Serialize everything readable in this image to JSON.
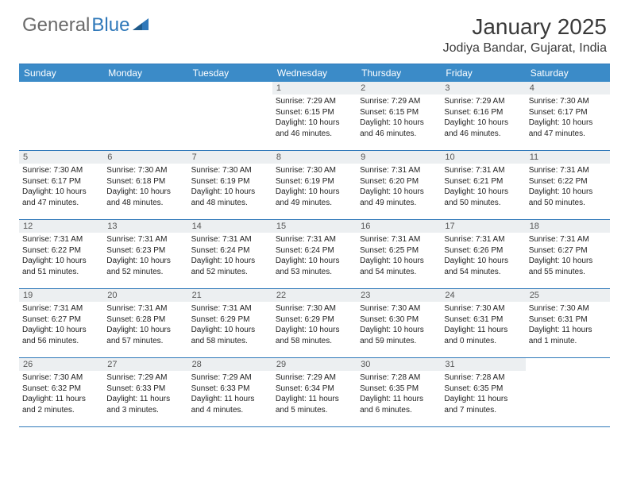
{
  "logo": {
    "text1": "General",
    "text2": "Blue"
  },
  "title": "January 2025",
  "location": "Jodiya Bandar, Gujarat, India",
  "colors": {
    "header_bar": "#3b8bc8",
    "rule": "#2f78b9",
    "daynum_bg": "#eceff1",
    "logo_gray": "#6a6a6a",
    "logo_blue": "#2f78b9"
  },
  "day_names": [
    "Sunday",
    "Monday",
    "Tuesday",
    "Wednesday",
    "Thursday",
    "Friday",
    "Saturday"
  ],
  "weeks": [
    [
      {
        "n": "",
        "sr": "",
        "ss": "",
        "dl": ""
      },
      {
        "n": "",
        "sr": "",
        "ss": "",
        "dl": ""
      },
      {
        "n": "",
        "sr": "",
        "ss": "",
        "dl": ""
      },
      {
        "n": "1",
        "sr": "Sunrise: 7:29 AM",
        "ss": "Sunset: 6:15 PM",
        "dl": "Daylight: 10 hours and 46 minutes."
      },
      {
        "n": "2",
        "sr": "Sunrise: 7:29 AM",
        "ss": "Sunset: 6:15 PM",
        "dl": "Daylight: 10 hours and 46 minutes."
      },
      {
        "n": "3",
        "sr": "Sunrise: 7:29 AM",
        "ss": "Sunset: 6:16 PM",
        "dl": "Daylight: 10 hours and 46 minutes."
      },
      {
        "n": "4",
        "sr": "Sunrise: 7:30 AM",
        "ss": "Sunset: 6:17 PM",
        "dl": "Daylight: 10 hours and 47 minutes."
      }
    ],
    [
      {
        "n": "5",
        "sr": "Sunrise: 7:30 AM",
        "ss": "Sunset: 6:17 PM",
        "dl": "Daylight: 10 hours and 47 minutes."
      },
      {
        "n": "6",
        "sr": "Sunrise: 7:30 AM",
        "ss": "Sunset: 6:18 PM",
        "dl": "Daylight: 10 hours and 48 minutes."
      },
      {
        "n": "7",
        "sr": "Sunrise: 7:30 AM",
        "ss": "Sunset: 6:19 PM",
        "dl": "Daylight: 10 hours and 48 minutes."
      },
      {
        "n": "8",
        "sr": "Sunrise: 7:30 AM",
        "ss": "Sunset: 6:19 PM",
        "dl": "Daylight: 10 hours and 49 minutes."
      },
      {
        "n": "9",
        "sr": "Sunrise: 7:31 AM",
        "ss": "Sunset: 6:20 PM",
        "dl": "Daylight: 10 hours and 49 minutes."
      },
      {
        "n": "10",
        "sr": "Sunrise: 7:31 AM",
        "ss": "Sunset: 6:21 PM",
        "dl": "Daylight: 10 hours and 50 minutes."
      },
      {
        "n": "11",
        "sr": "Sunrise: 7:31 AM",
        "ss": "Sunset: 6:22 PM",
        "dl": "Daylight: 10 hours and 50 minutes."
      }
    ],
    [
      {
        "n": "12",
        "sr": "Sunrise: 7:31 AM",
        "ss": "Sunset: 6:22 PM",
        "dl": "Daylight: 10 hours and 51 minutes."
      },
      {
        "n": "13",
        "sr": "Sunrise: 7:31 AM",
        "ss": "Sunset: 6:23 PM",
        "dl": "Daylight: 10 hours and 52 minutes."
      },
      {
        "n": "14",
        "sr": "Sunrise: 7:31 AM",
        "ss": "Sunset: 6:24 PM",
        "dl": "Daylight: 10 hours and 52 minutes."
      },
      {
        "n": "15",
        "sr": "Sunrise: 7:31 AM",
        "ss": "Sunset: 6:24 PM",
        "dl": "Daylight: 10 hours and 53 minutes."
      },
      {
        "n": "16",
        "sr": "Sunrise: 7:31 AM",
        "ss": "Sunset: 6:25 PM",
        "dl": "Daylight: 10 hours and 54 minutes."
      },
      {
        "n": "17",
        "sr": "Sunrise: 7:31 AM",
        "ss": "Sunset: 6:26 PM",
        "dl": "Daylight: 10 hours and 54 minutes."
      },
      {
        "n": "18",
        "sr": "Sunrise: 7:31 AM",
        "ss": "Sunset: 6:27 PM",
        "dl": "Daylight: 10 hours and 55 minutes."
      }
    ],
    [
      {
        "n": "19",
        "sr": "Sunrise: 7:31 AM",
        "ss": "Sunset: 6:27 PM",
        "dl": "Daylight: 10 hours and 56 minutes."
      },
      {
        "n": "20",
        "sr": "Sunrise: 7:31 AM",
        "ss": "Sunset: 6:28 PM",
        "dl": "Daylight: 10 hours and 57 minutes."
      },
      {
        "n": "21",
        "sr": "Sunrise: 7:31 AM",
        "ss": "Sunset: 6:29 PM",
        "dl": "Daylight: 10 hours and 58 minutes."
      },
      {
        "n": "22",
        "sr": "Sunrise: 7:30 AM",
        "ss": "Sunset: 6:29 PM",
        "dl": "Daylight: 10 hours and 58 minutes."
      },
      {
        "n": "23",
        "sr": "Sunrise: 7:30 AM",
        "ss": "Sunset: 6:30 PM",
        "dl": "Daylight: 10 hours and 59 minutes."
      },
      {
        "n": "24",
        "sr": "Sunrise: 7:30 AM",
        "ss": "Sunset: 6:31 PM",
        "dl": "Daylight: 11 hours and 0 minutes."
      },
      {
        "n": "25",
        "sr": "Sunrise: 7:30 AM",
        "ss": "Sunset: 6:31 PM",
        "dl": "Daylight: 11 hours and 1 minute."
      }
    ],
    [
      {
        "n": "26",
        "sr": "Sunrise: 7:30 AM",
        "ss": "Sunset: 6:32 PM",
        "dl": "Daylight: 11 hours and 2 minutes."
      },
      {
        "n": "27",
        "sr": "Sunrise: 7:29 AM",
        "ss": "Sunset: 6:33 PM",
        "dl": "Daylight: 11 hours and 3 minutes."
      },
      {
        "n": "28",
        "sr": "Sunrise: 7:29 AM",
        "ss": "Sunset: 6:33 PM",
        "dl": "Daylight: 11 hours and 4 minutes."
      },
      {
        "n": "29",
        "sr": "Sunrise: 7:29 AM",
        "ss": "Sunset: 6:34 PM",
        "dl": "Daylight: 11 hours and 5 minutes."
      },
      {
        "n": "30",
        "sr": "Sunrise: 7:28 AM",
        "ss": "Sunset: 6:35 PM",
        "dl": "Daylight: 11 hours and 6 minutes."
      },
      {
        "n": "31",
        "sr": "Sunrise: 7:28 AM",
        "ss": "Sunset: 6:35 PM",
        "dl": "Daylight: 11 hours and 7 minutes."
      },
      {
        "n": "",
        "sr": "",
        "ss": "",
        "dl": ""
      }
    ]
  ]
}
